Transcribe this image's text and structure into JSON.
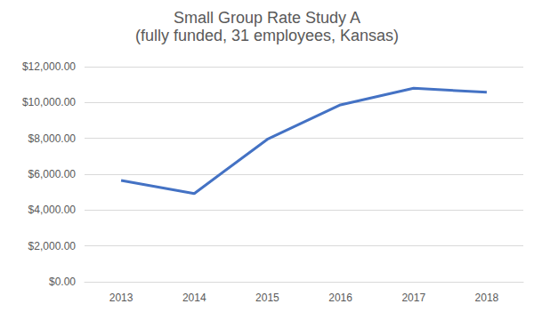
{
  "chart_data": {
    "type": "line",
    "title": "Small Group Rate Study A",
    "subtitle": "(fully funded, 31 employees, Kansas)",
    "categories": [
      "2013",
      "2014",
      "2015",
      "2016",
      "2017",
      "2018"
    ],
    "values": [
      5650,
      4920,
      7950,
      9870,
      10800,
      10570
    ],
    "color": "#4472c4",
    "ylim": [
      0,
      12000
    ],
    "yticks": [
      {
        "value": 0,
        "label": "$0.00"
      },
      {
        "value": 2000,
        "label": "$2,000.00"
      },
      {
        "value": 4000,
        "label": "$4,000.00"
      },
      {
        "value": 6000,
        "label": "$6,000.00"
      },
      {
        "value": 8000,
        "label": "$8,000.00"
      },
      {
        "value": 10000,
        "label": "$10,000.00"
      },
      {
        "value": 12000,
        "label": "$12,000.00"
      }
    ],
    "grid": true
  }
}
